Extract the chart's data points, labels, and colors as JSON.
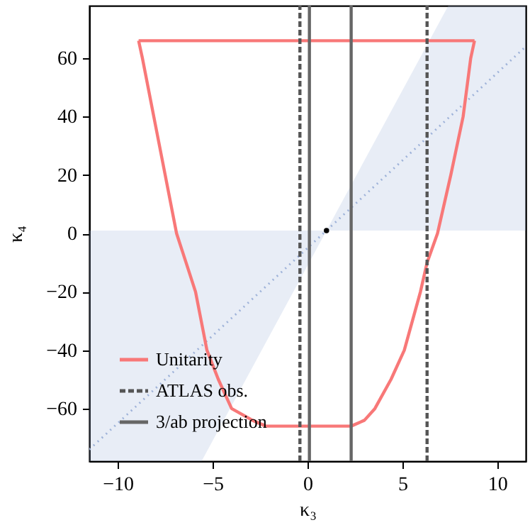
{
  "chart_data": {
    "type": "line",
    "xlabel": "κ₃",
    "ylabel": "κ₄",
    "xlim": [
      -11.5,
      11.5
    ],
    "ylim": [
      -78,
      78
    ],
    "xticks": [
      -10,
      -5,
      0,
      5,
      10
    ],
    "yticks": [
      -60,
      -40,
      -20,
      0,
      20,
      40,
      60
    ],
    "grid": false,
    "legend": "bottom left",
    "series": [
      {
        "color": "#9fb3d9",
        "line_style": "dotted",
        "x": [
          -11.5,
          -5.58,
          1,
          7.42,
          11.5
        ],
        "values": [
          -74,
          -38.5,
          1,
          39.5,
          64
        ],
        "lower": [
          -78,
          -78,
          1,
          1,
          1
        ],
        "upper": [
          1,
          1,
          1,
          78,
          78
        ]
      },
      {
        "color": "#f87878",
        "line_style": "solid",
        "x": [
          -8.9,
          8.8
        ],
        "values": [
          66,
          66
        ]
      },
      {
        "name": "Unitarity",
        "color": "#f87878",
        "line_style": "solid",
        "x": [
          -8.9,
          -8.7,
          -8.1,
          -7.5,
          -6.9,
          -6.4,
          -5.9,
          -5.3,
          -4.7,
          -4.0,
          -2.9,
          -2.2,
          2.3,
          3.0,
          3.55,
          4.4,
          5.1,
          5.95,
          6.3,
          6.85,
          7.55,
          8.2,
          8.6,
          8.8
        ],
        "values": [
          66,
          60,
          40,
          20,
          0,
          -10,
          -20,
          -40,
          -50,
          -60,
          -64,
          -66,
          -66,
          -64,
          -60,
          -50,
          -40,
          -20,
          -10,
          0,
          20,
          40,
          60,
          66
        ]
      },
      {
        "type": "scatter",
        "color": "#000000",
        "marker": "circle",
        "x": [
          1
        ],
        "values": [
          1
        ]
      }
    ],
    "ref_lines": [
      {
        "axis": "x",
        "value": -0.4,
        "label": "ATLAS obs.",
        "color": "#555555",
        "line_style": "dashed"
      },
      {
        "axis": "x",
        "value": 6.3,
        "color": "#555555",
        "line_style": "dashed"
      },
      {
        "axis": "x",
        "value": 0.1,
        "label": "3/ab projection",
        "color": "#666666",
        "line_style": "solid"
      },
      {
        "axis": "x",
        "value": 2.3,
        "color": "#666666",
        "line_style": "solid"
      }
    ]
  }
}
